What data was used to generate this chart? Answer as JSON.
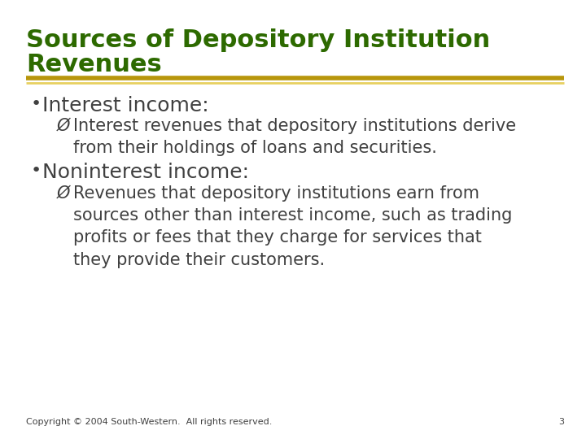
{
  "title_line1": "Sources of Depository Institution",
  "title_line2": "Revenues",
  "title_color": "#2d6a00",
  "title_fontsize": 22,
  "separator_color_top": "#c8a830",
  "separator_color_bottom": "#e8d070",
  "bg_color": "#ffffff",
  "bullet1_text": "Interest income:",
  "bullet1_fontsize": 18,
  "sub1_text": "Interest revenues that depository institutions derive\nfrom their holdings of loans and securities.",
  "sub1_fontsize": 15,
  "bullet2_text": "Noninterest income:",
  "bullet2_fontsize": 18,
  "sub2_text": "Revenues that depository institutions earn from\nsources other than interest income, such as trading\nprofits or fees that they charge for services that\nthey provide their customers.",
  "sub2_fontsize": 15,
  "body_color": "#404040",
  "copyright_text": "Copyright © 2004 South-Western.  All rights reserved.",
  "copyright_fontsize": 8,
  "page_number": "3",
  "bullet_color": "#404040",
  "arrow_color": "#404040"
}
